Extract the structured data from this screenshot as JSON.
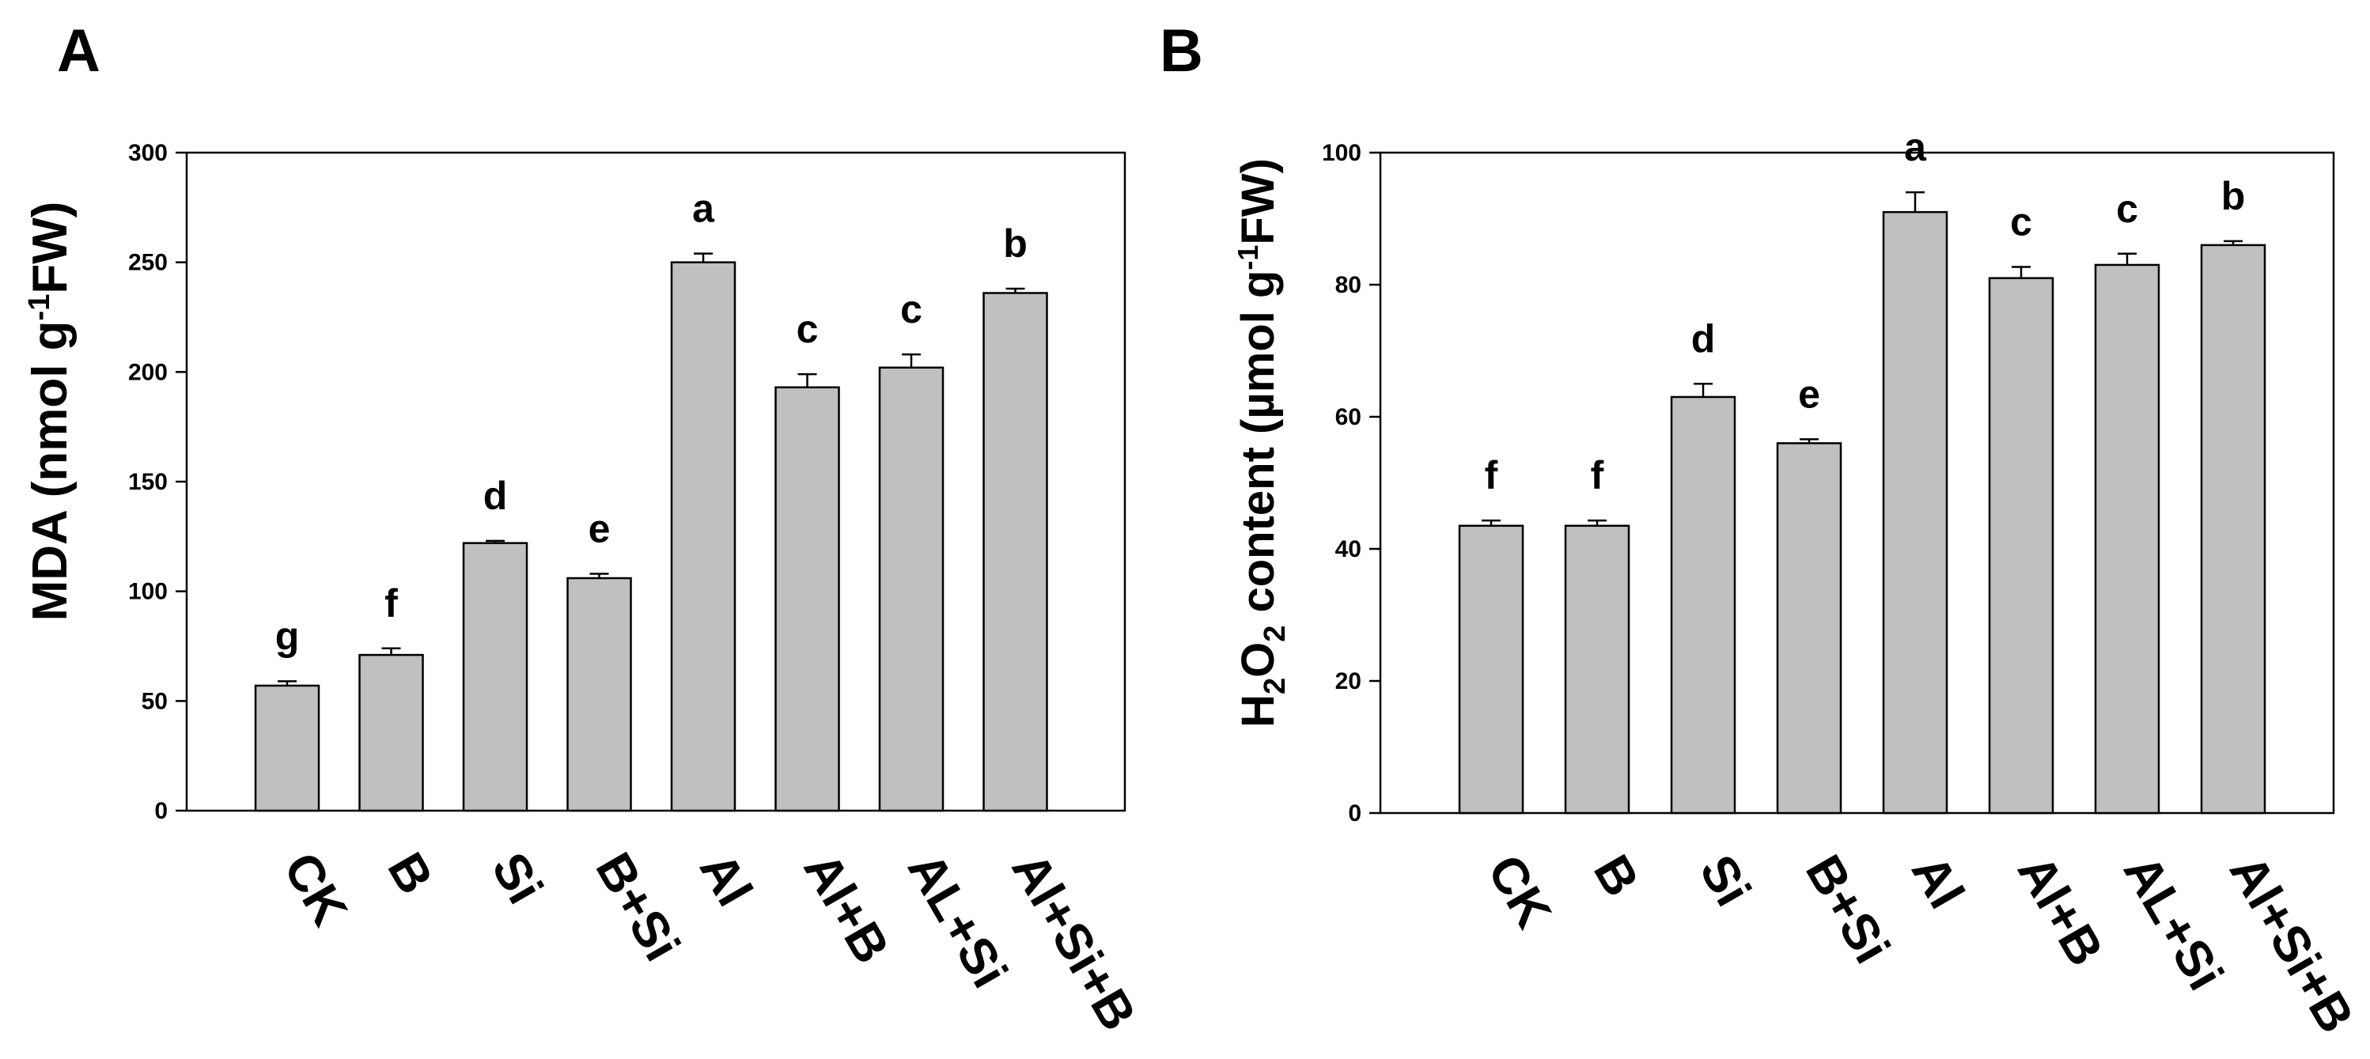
{
  "chart_data": [
    {
      "panel": "A",
      "type": "bar",
      "title": "",
      "ylabel_main": "MDA  (nmol g",
      "ylabel_sup": "-1",
      "ylabel_tail": "FW)",
      "xlabel": "",
      "categories": [
        "CK",
        "B",
        "Si",
        "B+Si",
        "Al",
        "Al+B",
        "AL+Si",
        "Al+Si+B"
      ],
      "values": [
        57,
        71,
        122,
        106,
        250,
        193,
        202,
        236
      ],
      "errors": [
        2,
        3,
        1,
        2,
        4,
        6,
        6,
        2
      ],
      "letters": [
        "g",
        "f",
        "d",
        "e",
        "a",
        "c",
        "c",
        "b"
      ],
      "ylim": [
        0,
        300
      ],
      "yticks": [
        0,
        50,
        100,
        150,
        200,
        250,
        300
      ],
      "bar_color": "#c0c0c0",
      "grid": false
    },
    {
      "panel": "B",
      "type": "bar",
      "title": "",
      "ylabel_pre": "H",
      "ylabel_sub1": "2",
      "ylabel_mid": "O",
      "ylabel_sub2": "2",
      "ylabel_main": " content (µmol g",
      "ylabel_sup": "-1",
      "ylabel_tail": "FW)",
      "xlabel": "",
      "categories": [
        "CK",
        "B",
        "Si",
        "B+Si",
        "Al",
        "Al+B",
        "AL+Si",
        "Al+Si+B"
      ],
      "values": [
        43.5,
        43.5,
        63,
        56,
        91,
        81,
        83,
        86
      ],
      "errors": [
        0.8,
        0.8,
        2,
        0.6,
        3,
        1.7,
        1.7,
        0.6
      ],
      "letters": [
        "f",
        "f",
        "d",
        "e",
        "a",
        "c",
        "c",
        "b"
      ],
      "ylim": [
        0,
        100
      ],
      "yticks": [
        0,
        20,
        40,
        60,
        80,
        100
      ],
      "bar_color": "#c0c0c0",
      "grid": false
    }
  ]
}
